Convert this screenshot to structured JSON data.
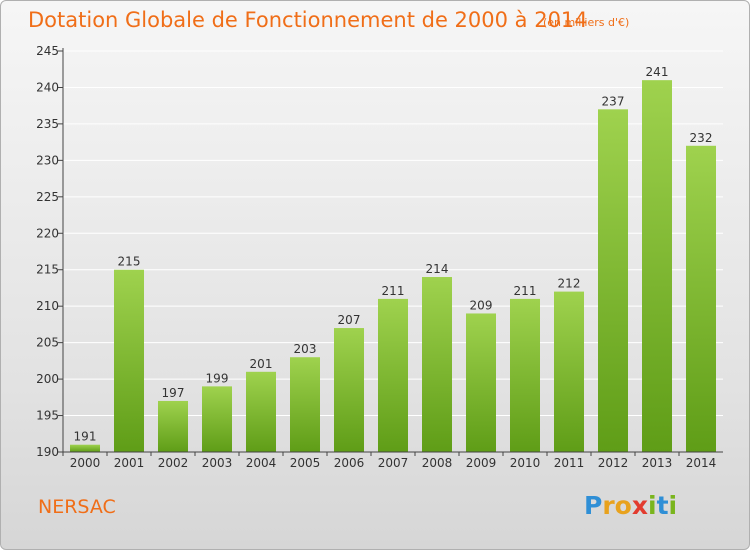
{
  "title": "Dotation Globale de Fonctionnement de 2000 à 2014",
  "unit": "(en milliers d'€)",
  "commune": "NERSAC",
  "logo": {
    "text": "Proxiti",
    "letters": [
      "P",
      "r",
      "o",
      "x",
      "i",
      "t",
      "i"
    ],
    "colors": [
      "#2f8fd6",
      "#e8a21d",
      "#e8a21d",
      "#e23b2e",
      "#7ab51d",
      "#2f8fd6",
      "#7ab51d"
    ]
  },
  "colors": {
    "title": "#f06e18",
    "bar_top": "#9fd24e",
    "bar_bottom": "#5f9d17",
    "axis": "#444444",
    "grid": "#ffffff"
  },
  "chart_data": {
    "type": "bar",
    "title": "Dotation Globale de Fonctionnement de 2000 à 2014",
    "subtitle": "(en milliers d'€)",
    "xlabel": "",
    "ylabel": "",
    "categories": [
      "2000",
      "2001",
      "2002",
      "2003",
      "2004",
      "2005",
      "2006",
      "2007",
      "2008",
      "2009",
      "2010",
      "2011",
      "2012",
      "2013",
      "2014"
    ],
    "values": [
      191,
      215,
      197,
      199,
      201,
      203,
      207,
      211,
      214,
      209,
      211,
      212,
      237,
      241,
      232
    ],
    "ylim": [
      190,
      245
    ],
    "yticks": [
      190,
      195,
      200,
      205,
      210,
      215,
      220,
      225,
      230,
      235,
      240,
      245
    ],
    "grid": true,
    "data_labels": true
  }
}
